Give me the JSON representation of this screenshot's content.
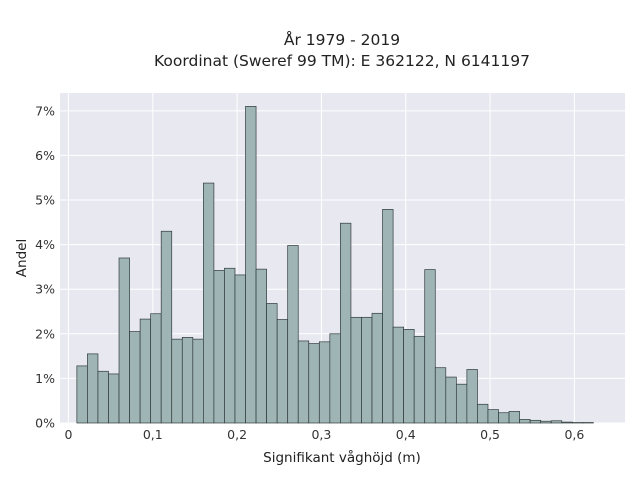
{
  "chart_data": {
    "type": "bar",
    "title": "År 1979 - 2019",
    "subtitle": "Koordinat (Sweref 99 TM): E 362122, N 6141197",
    "xlabel": "Signifikant våghöjd (m)",
    "ylabel": "Andel",
    "xlim": [
      -0.01,
      0.66
    ],
    "ylim": [
      0,
      7.4
    ],
    "x_ticks": [
      0,
      0.1,
      0.2,
      0.3,
      0.4,
      0.5,
      0.6
    ],
    "x_tick_labels": [
      "0",
      "0,1",
      "0,2",
      "0,3",
      "0,4",
      "0,5",
      "0,6"
    ],
    "y_ticks": [
      0,
      1,
      2,
      3,
      4,
      5,
      6,
      7
    ],
    "y_tick_labels": [
      "0%",
      "1%",
      "2%",
      "3%",
      "4%",
      "5%",
      "6%",
      "7%"
    ],
    "bin_width": 0.0125,
    "bin_start": 0.01,
    "values": [
      1.28,
      1.55,
      1.16,
      1.1,
      3.7,
      2.05,
      2.33,
      2.45,
      4.3,
      1.88,
      1.92,
      1.88,
      5.38,
      3.42,
      3.47,
      3.32,
      7.1,
      3.45,
      2.68,
      2.32,
      3.98,
      1.84,
      1.78,
      1.82,
      2.0,
      4.48,
      2.37,
      2.37,
      2.46,
      4.79,
      2.15,
      2.1,
      1.94,
      3.44,
      1.24,
      1.03,
      0.87,
      1.2,
      0.42,
      0.3,
      0.23,
      0.26,
      0.08,
      0.06,
      0.04,
      0.05,
      0.02,
      0.01,
      0.01
    ],
    "grid": true,
    "bar_color": "#9fb5b5",
    "bar_edge_color": "#2f3a3a",
    "plot_background": "#e8e8f0"
  }
}
